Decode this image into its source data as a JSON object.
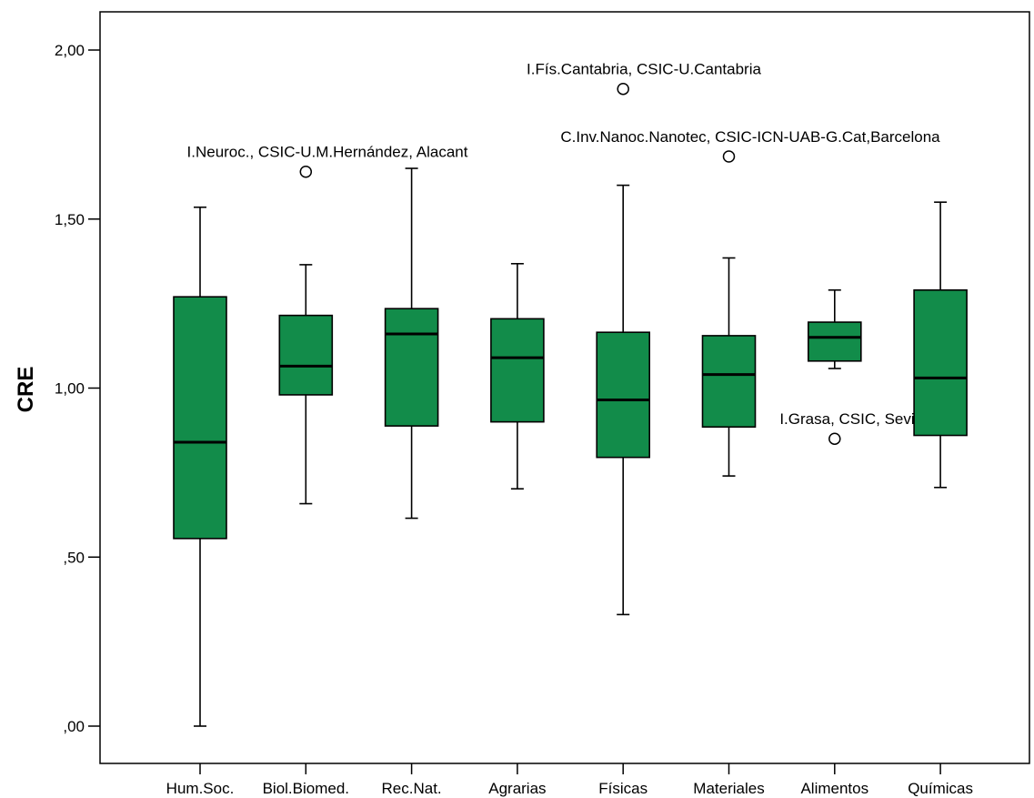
{
  "chart_data": {
    "type": "boxplot",
    "ylabel": "CRE",
    "xlabel": "",
    "ylim": [
      -0.1,
      2.12
    ],
    "yticks": [
      0,
      0.5,
      1.0,
      1.5,
      2.0
    ],
    "ytick_labels": [
      ",00",
      ",50",
      "1,00",
      "1,50",
      "2,00"
    ],
    "box_color": "#128c4a",
    "categories": [
      "Hum.Soc.",
      "Biol.Biomed.",
      "Rec.Nat.",
      "Agrarias",
      "Físicas",
      "Materiales",
      "Alimentos",
      "Químicas"
    ],
    "boxes": [
      {
        "category": "Hum.Soc.",
        "min": 0.0,
        "q1": 0.555,
        "median": 0.84,
        "q3": 1.27,
        "max": 1.535,
        "outliers": []
      },
      {
        "category": "Biol.Biomed.",
        "min": 0.658,
        "q1": 0.98,
        "median": 1.065,
        "q3": 1.215,
        "max": 1.365,
        "outliers": [
          {
            "value": 1.64,
            "label": "I.Neuroc., CSIC-U.M.Hernández, Alacant"
          }
        ]
      },
      {
        "category": "Rec.Nat.",
        "min": 0.615,
        "q1": 0.888,
        "median": 1.16,
        "q3": 1.235,
        "max": 1.65,
        "outliers": []
      },
      {
        "category": "Agrarias",
        "min": 0.702,
        "q1": 0.9,
        "median": 1.09,
        "q3": 1.205,
        "max": 1.368,
        "outliers": []
      },
      {
        "category": "Físicas",
        "min": 0.33,
        "q1": 0.795,
        "median": 0.965,
        "q3": 1.165,
        "max": 1.6,
        "outliers": [
          {
            "value": 1.885,
            "label": "I.Fís.Cantabria, CSIC-U.Cantabria"
          }
        ]
      },
      {
        "category": "Materiales",
        "min": 0.74,
        "q1": 0.885,
        "median": 1.04,
        "q3": 1.155,
        "max": 1.385,
        "outliers": [
          {
            "value": 1.685,
            "label": "C.Inv.Nanoc.Nanotec, CSIC-ICN-UAB-G.Cat,Barcelona"
          }
        ]
      },
      {
        "category": "Alimentos",
        "min": 1.058,
        "q1": 1.08,
        "median": 1.15,
        "q3": 1.195,
        "max": 1.29,
        "outliers": [
          {
            "value": 0.85,
            "label": "I.Grasa, CSIC, Sevilla"
          }
        ]
      },
      {
        "category": "Químicas",
        "min": 0.706,
        "q1": 0.86,
        "median": 1.03,
        "q3": 1.29,
        "max": 1.55,
        "outliers": []
      }
    ]
  }
}
